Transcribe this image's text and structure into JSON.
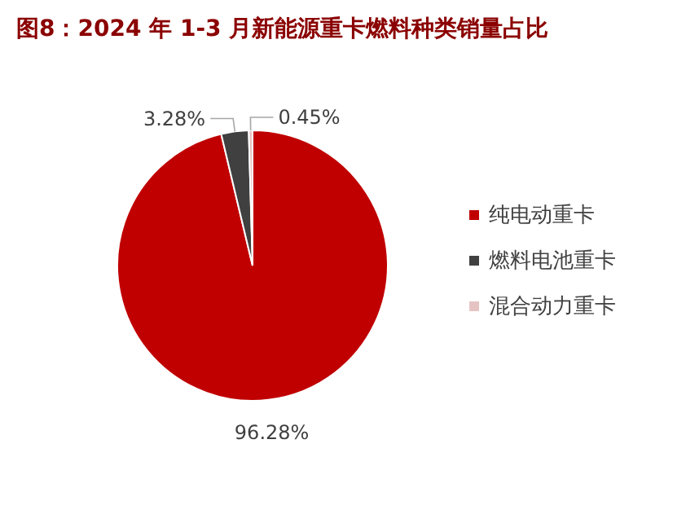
{
  "chart_data": {
    "type": "pie",
    "title": "图8：2024 年 1-3 月新能源重卡燃料种类销量占比",
    "categories": [
      "纯电动重卡",
      "燃料电池重卡",
      "混合动力重卡"
    ],
    "values": [
      96.28,
      3.28,
      0.45
    ],
    "colors": [
      "#c00000",
      "#404040",
      "#e6c3c3"
    ],
    "value_labels": [
      "96.28%",
      "3.28%",
      "0.45%"
    ],
    "legend": "right"
  }
}
